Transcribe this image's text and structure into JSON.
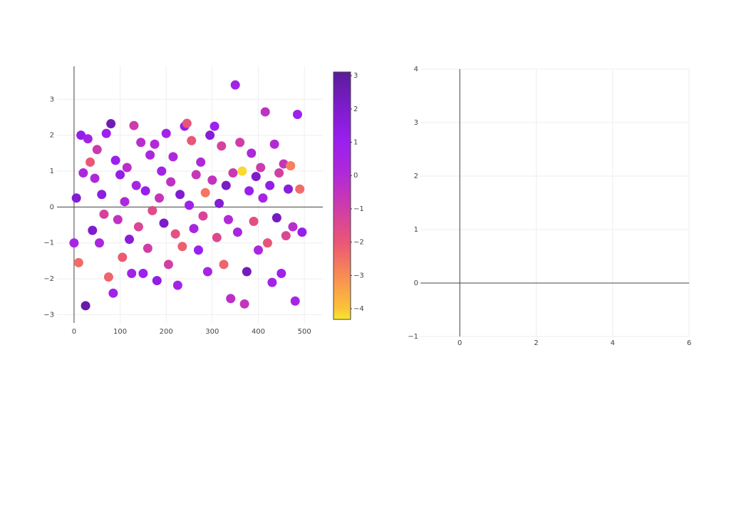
{
  "chart_data": [
    {
      "type": "scatter",
      "x": [
        0,
        5,
        10,
        15,
        20,
        25,
        30,
        35,
        40,
        45,
        50,
        55,
        60,
        65,
        70,
        75,
        80,
        85,
        90,
        95,
        100,
        105,
        110,
        115,
        120,
        125,
        130,
        135,
        140,
        145,
        150,
        155,
        160,
        165,
        170,
        175,
        180,
        185,
        190,
        195,
        200,
        205,
        210,
        215,
        220,
        225,
        230,
        235,
        240,
        245,
        250,
        255,
        260,
        265,
        270,
        275,
        280,
        285,
        290,
        295,
        300,
        305,
        310,
        315,
        320,
        325,
        330,
        335,
        340,
        345,
        350,
        355,
        360,
        365,
        370,
        375,
        380,
        385,
        390,
        395,
        400,
        405,
        410,
        415,
        420,
        425,
        430,
        435,
        440,
        445,
        450,
        455,
        460,
        465,
        470,
        475,
        480,
        485,
        490,
        495
      ],
      "values": [
        -1.0,
        0.25,
        -1.55,
        2.0,
        0.95,
        -2.75,
        1.9,
        1.25,
        -0.65,
        0.8,
        1.6,
        -1.0,
        0.35,
        -0.2,
        2.05,
        -1.95,
        2.32,
        -2.4,
        1.3,
        -0.35,
        0.9,
        -1.4,
        0.15,
        1.1,
        -0.9,
        -1.85,
        2.27,
        0.6,
        -0.55,
        1.8,
        -1.85,
        0.45,
        -1.15,
        1.45,
        -0.1,
        1.75,
        -2.05,
        0.25,
        1.0,
        -0.45,
        2.05,
        -1.6,
        0.7,
        1.4,
        -0.75,
        -2.18,
        0.35,
        -1.1,
        2.25,
        2.33,
        0.05,
        1.85,
        -0.6,
        0.9,
        -1.2,
        1.25,
        -0.25,
        0.4,
        -1.8,
        2.0,
        0.75,
        2.25,
        -0.85,
        0.1,
        1.7,
        -1.6,
        0.6,
        -0.35,
        -2.55,
        0.95,
        3.4,
        -0.7,
        1.8,
        1.0,
        -2.7,
        -1.8,
        0.45,
        1.5,
        -0.4,
        0.85,
        -1.2,
        1.1,
        0.25,
        2.65,
        -1.0,
        0.6,
        -2.1,
        1.75,
        -0.3,
        0.95,
        -1.85,
        1.2,
        -0.8,
        0.5,
        1.15,
        -0.55,
        -2.62,
        2.58,
        0.5,
        -0.7
      ],
      "color_values": [
        0.5,
        1.8,
        -2.4,
        1.2,
        0.3,
        2.8,
        0.6,
        -2.0,
        2.0,
        0.1,
        -0.8,
        0.4,
        1.5,
        -1.2,
        0.9,
        -2.3,
        2.5,
        0.7,
        1.0,
        -0.5,
        1.3,
        -2.1,
        0.2,
        -0.3,
        1.6,
        0.8,
        -0.9,
        0.5,
        -1.4,
        -0.2,
        0.9,
        1.1,
        -1.0,
        0.3,
        -1.6,
        0.0,
        1.4,
        -0.6,
        0.7,
        2.1,
        0.6,
        -1.1,
        -0.4,
        0.2,
        -1.8,
        0.6,
        1.9,
        -2.2,
        1.2,
        -1.9,
        0.8,
        -2.0,
        0.4,
        -0.7,
        1.0,
        0.1,
        -1.3,
        -2.6,
        0.5,
        1.7,
        -0.5,
        0.9,
        -1.5,
        1.8,
        -1.2,
        -2.3,
        2.2,
        0.0,
        -0.3,
        -0.8,
        0.7,
        0.4,
        -1.0,
        -4.2,
        -0.6,
        2.4,
        1.1,
        0.2,
        -1.7,
        2.0,
        0.3,
        -0.9,
        0.5,
        -0.4,
        -1.9,
        1.3,
        0.6,
        0.0,
        2.3,
        -1.1,
        0.8,
        -0.6,
        -1.4,
        1.6,
        -2.8,
        -0.2,
        0.5,
        0.9,
        -2.4,
        1.2
      ],
      "colorscale": [
        [
          0,
          "#f7e52b"
        ],
        [
          0.05,
          "#fbc13a"
        ],
        [
          0.18,
          "#f88a55"
        ],
        [
          0.31,
          "#eb5676"
        ],
        [
          0.45,
          "#cf3ca8"
        ],
        [
          0.58,
          "#b22ad6"
        ],
        [
          0.72,
          "#9a1ff0"
        ],
        [
          0.86,
          "#7d1ccc"
        ],
        [
          1,
          "#5b1c99"
        ]
      ],
      "clim": [
        -4.32,
        3.11
      ],
      "colorbar_ticks": [
        {
          "value": -4,
          "label": "−4"
        },
        {
          "value": -3,
          "label": "−3"
        },
        {
          "value": -2,
          "label": "−2"
        },
        {
          "value": -1,
          "label": "−1"
        },
        0,
        1,
        2,
        3
      ],
      "xlim": [
        -37,
        540
      ],
      "ylim": [
        -3.23,
        3.92
      ],
      "xticks": [
        0,
        100,
        200,
        300,
        400,
        500
      ],
      "yticks": [
        {
          "value": -3,
          "label": "−3"
        },
        {
          "value": -2,
          "label": "−2"
        },
        {
          "value": -1,
          "label": "−1"
        },
        0,
        1,
        2,
        3
      ],
      "grid": true
    },
    {
      "type": "scatter",
      "xlim": [
        -1.03,
        6
      ],
      "ylim": [
        -1,
        4
      ],
      "xticks": [
        0,
        2,
        4,
        6
      ],
      "yticks": [
        {
          "value": -1,
          "label": "−1"
        },
        0,
        1,
        2,
        3,
        4
      ],
      "grid": true
    }
  ]
}
